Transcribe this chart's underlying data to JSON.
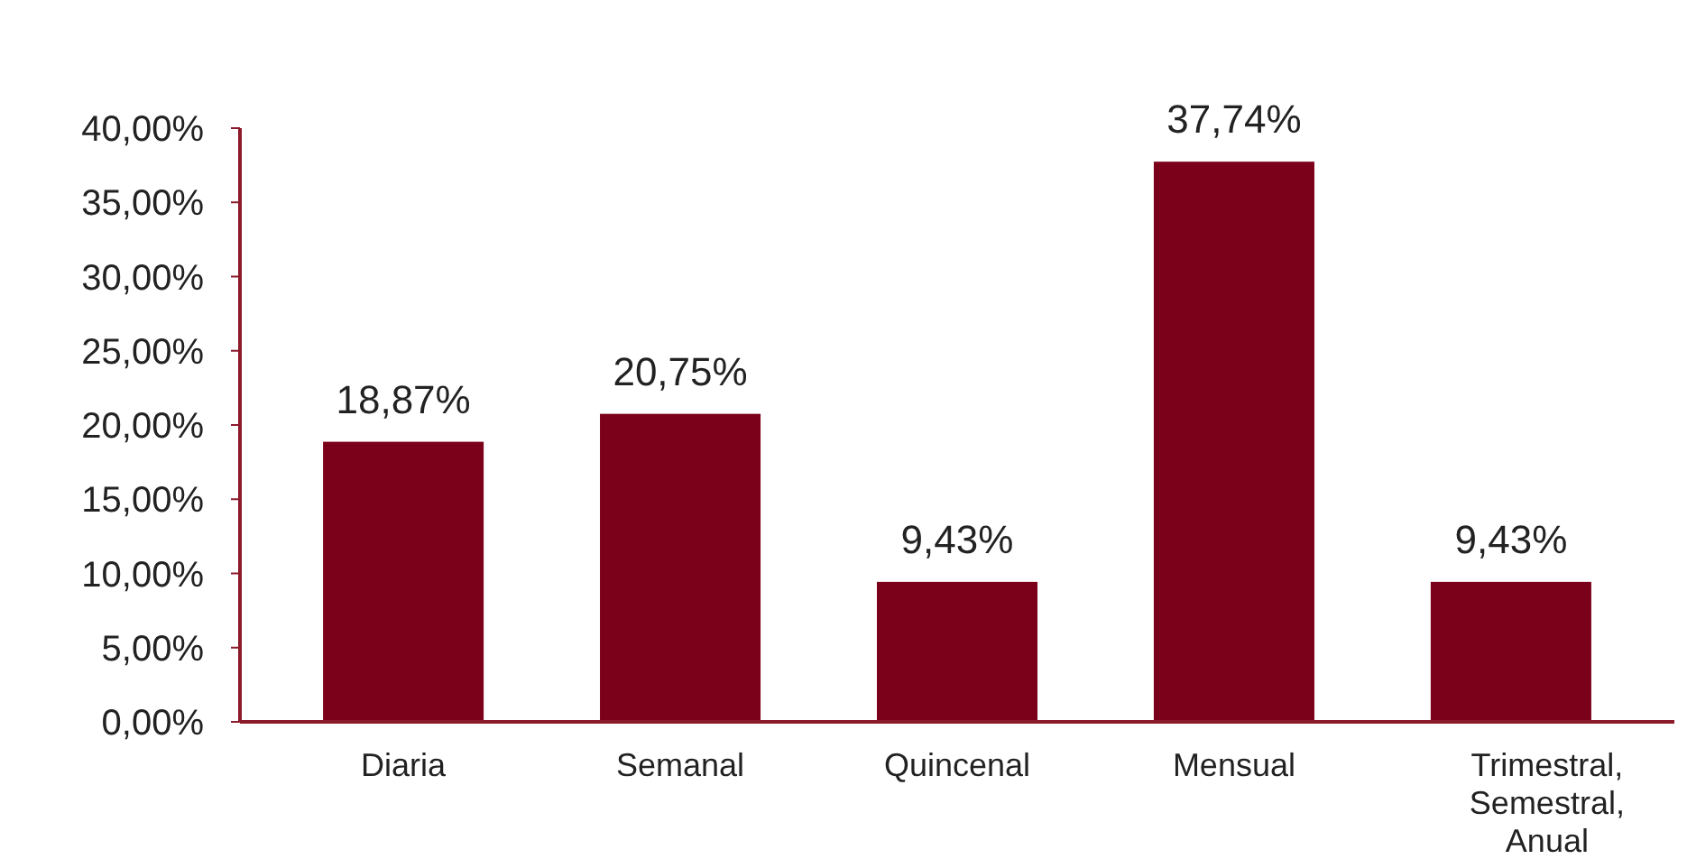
{
  "chart_data": {
    "type": "bar",
    "categories": [
      "Diaria",
      "Semanal",
      "Quincenal",
      "Mensual",
      "Trimestral, Semestral, Anual"
    ],
    "values": [
      18.87,
      20.75,
      9.43,
      37.74,
      9.43
    ],
    "value_labels": [
      "18,87%",
      "20,75%",
      "9,43%",
      "37,74%",
      "9,43%"
    ],
    "color": "#7b0019",
    "ylim": [
      0,
      40
    ],
    "yticks": [
      {
        "value": 0,
        "label": "0,00%"
      },
      {
        "value": 5,
        "label": "5,00%"
      },
      {
        "value": 10,
        "label": "10,00%"
      },
      {
        "value": 15,
        "label": "15,00%"
      },
      {
        "value": 20,
        "label": "20,00%"
      },
      {
        "value": 25,
        "label": "25,00%"
      },
      {
        "value": 30,
        "label": "30,00%"
      },
      {
        "value": 35,
        "label": "35,00%"
      },
      {
        "value": 40,
        "label": "40,00%"
      }
    ],
    "grid": false
  }
}
